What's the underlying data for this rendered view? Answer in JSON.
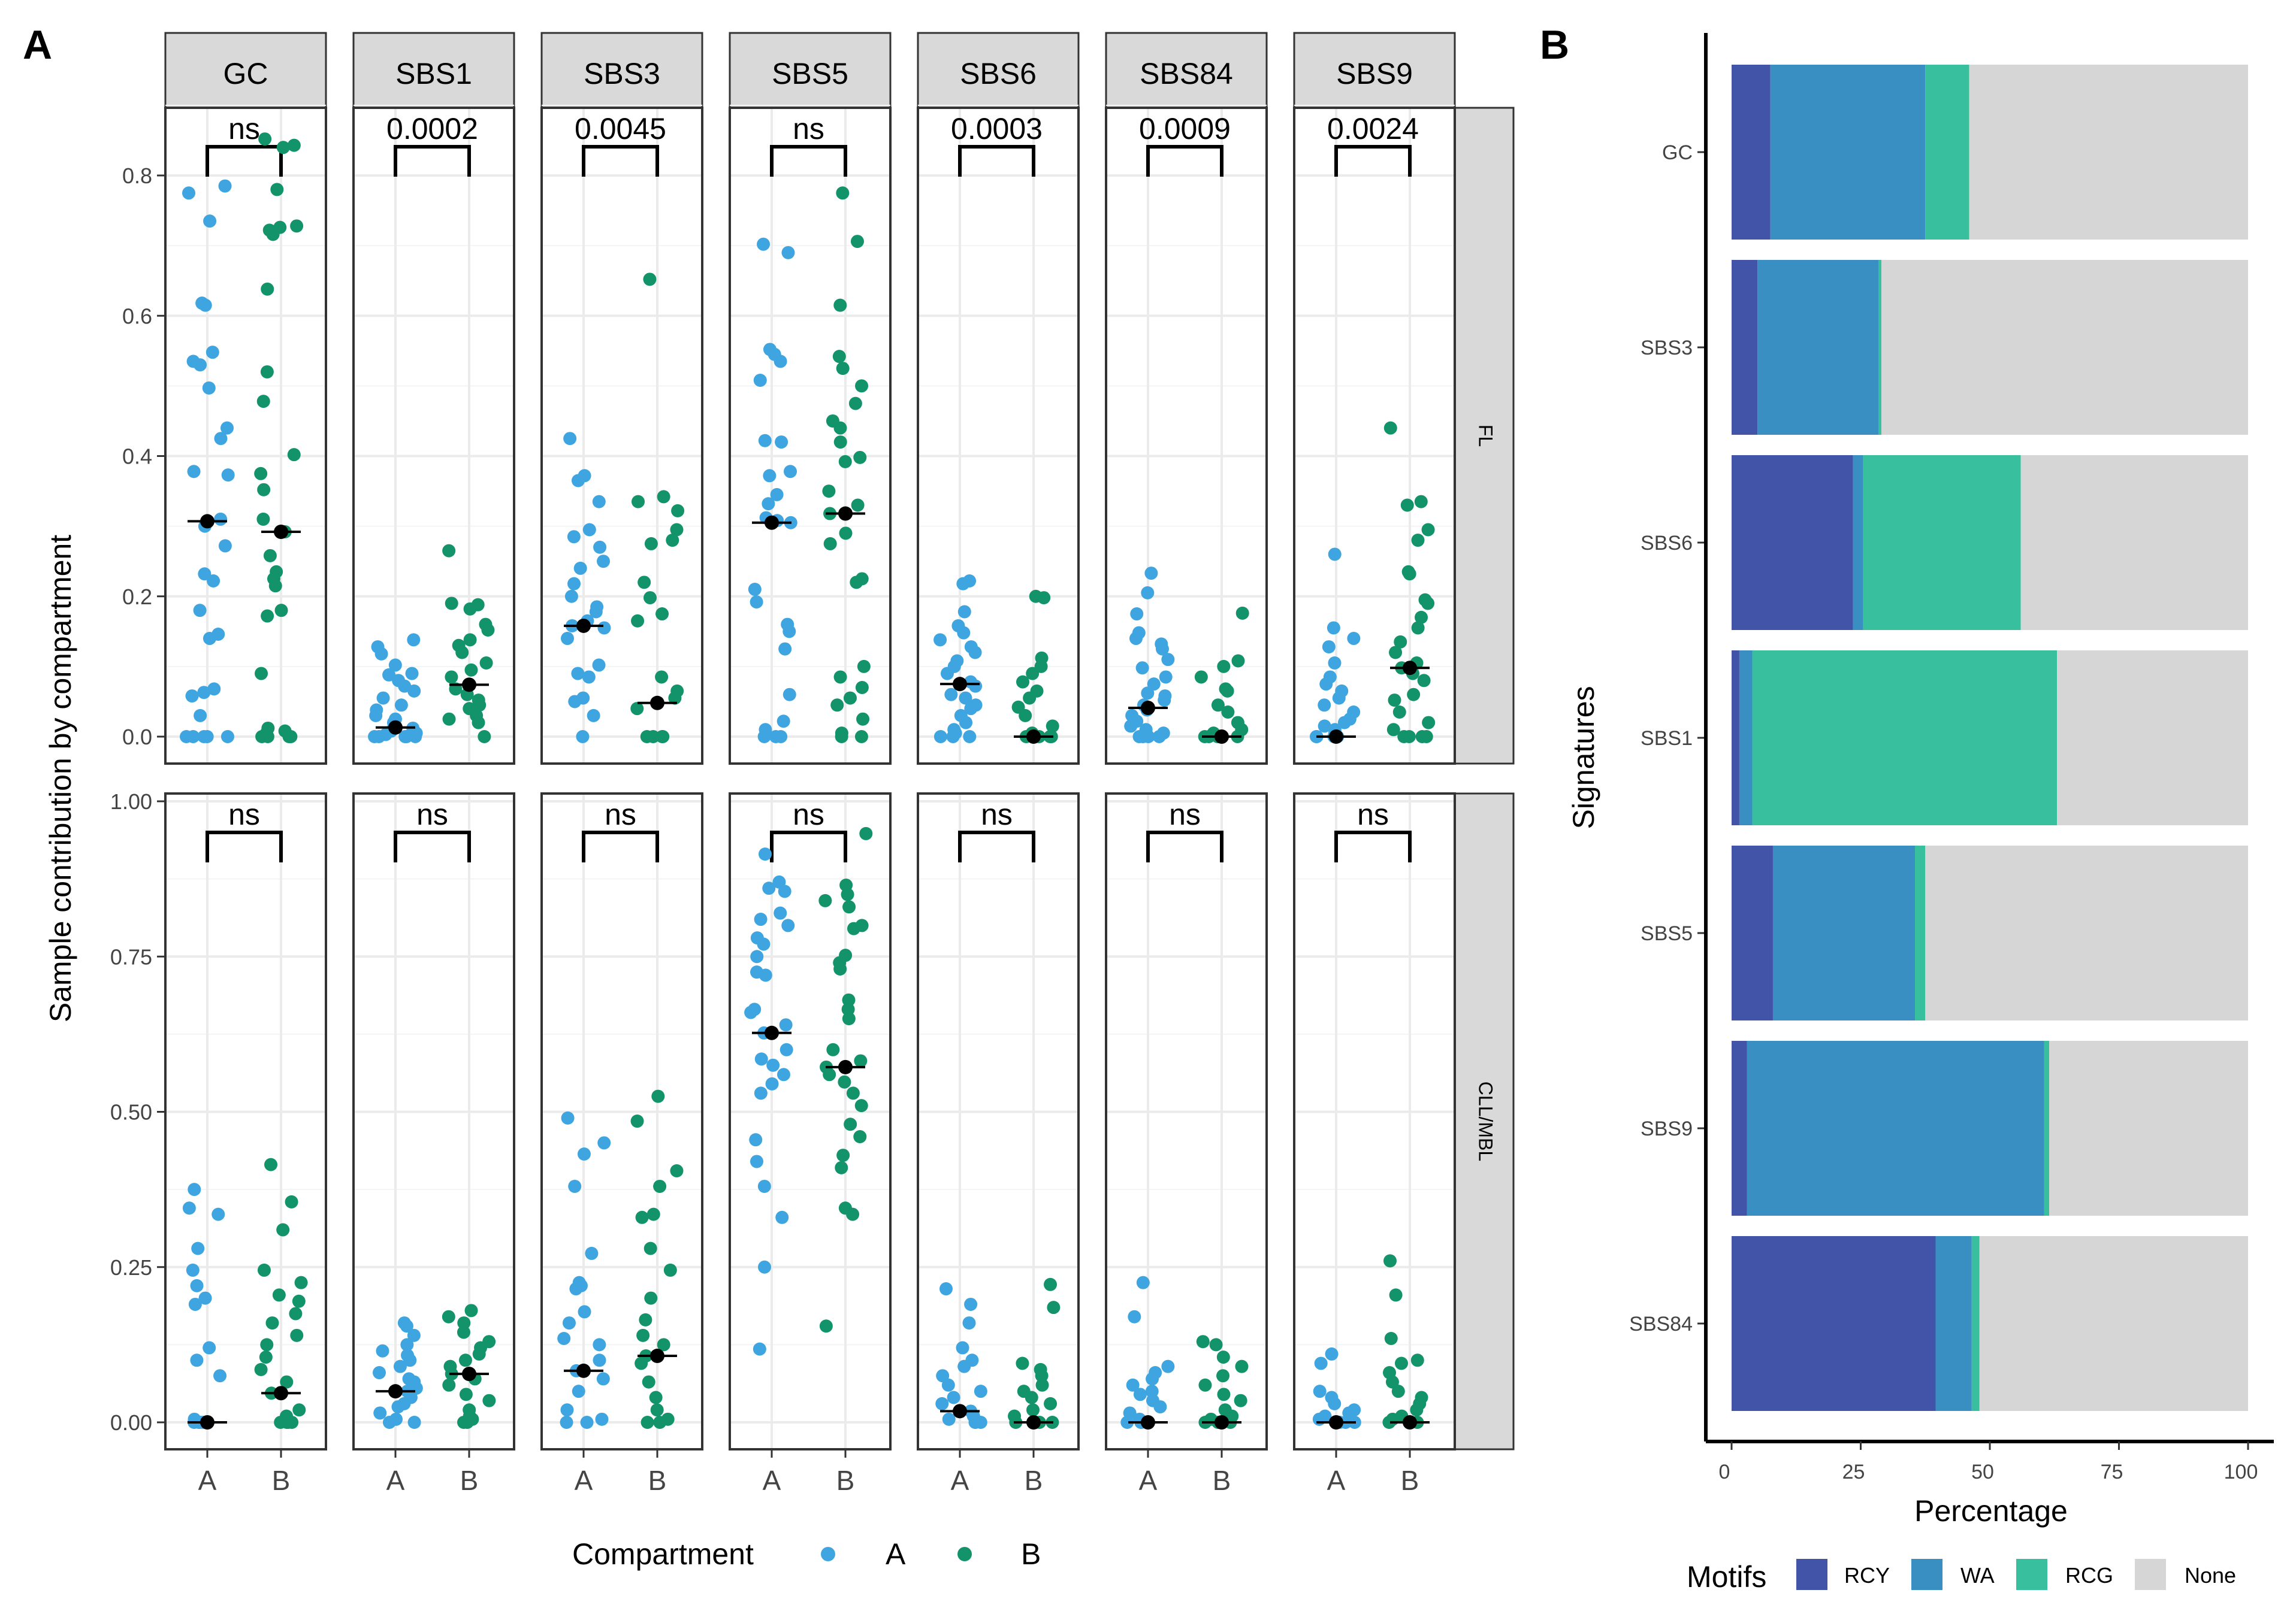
{
  "figure": {
    "panel_a_label": "A",
    "panel_b_label": "B"
  },
  "chart_data": [
    {
      "type": "scatter",
      "panel": "A",
      "title": "",
      "xlabel": "",
      "ylabel": "Sample contribution by compartment",
      "x_categories": [
        "A",
        "B"
      ],
      "facet_columns": [
        "GC",
        "SBS1",
        "SBS3",
        "SBS5",
        "SBS6",
        "SBS84",
        "SBS9"
      ],
      "facet_rows": [
        "FL",
        "CLL/MBL"
      ],
      "legend": {
        "title": "Compartment",
        "entries": [
          "A",
          "B"
        ],
        "colors": [
          "#3FA5E0",
          "#13936A"
        ]
      },
      "median_color": "#000000",
      "rows": [
        {
          "name": "FL",
          "ylim": [
            0,
            0.86
          ],
          "yticks": [
            0.0,
            0.2,
            0.4,
            0.6,
            0.8
          ],
          "ytick_labels": [
            "0.0",
            "0.2",
            "0.4",
            "0.6",
            "0.8"
          ],
          "panels": [
            {
              "facet": "GC",
              "p_label": "ns",
              "median_A": 0.307,
              "median_B": 0.292,
              "A": [
                0.785,
                0.775,
                0.735,
                0.618,
                0.615,
                0.548,
                0.535,
                0.53,
                0.497,
                0.44,
                0.425,
                0.378,
                0.373,
                0.31,
                0.3,
                0.272,
                0.232,
                0.222,
                0.18,
                0.146,
                0.14,
                0.068,
                0.063,
                0.058,
                0.03,
                0.0,
                0.0,
                0.0,
                0.0,
                0.0
              ],
              "B": [
                0.852,
                0.843,
                0.84,
                0.78,
                0.728,
                0.726,
                0.722,
                0.716,
                0.638,
                0.52,
                0.478,
                0.402,
                0.375,
                0.352,
                0.31,
                0.292,
                0.258,
                0.235,
                0.225,
                0.215,
                0.18,
                0.172,
                0.09,
                0.012,
                0.008,
                0.005,
                0.0,
                0.0,
                0.0,
                0.0
              ]
            },
            {
              "facet": "SBS1",
              "p_label": "0.0002",
              "median_A": 0.013,
              "median_B": 0.074,
              "A": [
                0.138,
                0.128,
                0.118,
                0.102,
                0.09,
                0.088,
                0.08,
                0.072,
                0.065,
                0.055,
                0.045,
                0.038,
                0.03,
                0.025,
                0.02,
                0.015,
                0.012,
                0.008,
                0.005,
                0.003,
                0.0,
                0.0,
                0.0,
                0.0,
                0.0
              ],
              "B": [
                0.265,
                0.19,
                0.188,
                0.182,
                0.16,
                0.152,
                0.138,
                0.13,
                0.12,
                0.105,
                0.095,
                0.085,
                0.074,
                0.068,
                0.06,
                0.052,
                0.045,
                0.04,
                0.03,
                0.025,
                0.02,
                0.0
              ]
            },
            {
              "facet": "SBS3",
              "p_label": "0.0045",
              "median_A": 0.158,
              "median_B": 0.048,
              "A": [
                0.425,
                0.372,
                0.365,
                0.335,
                0.295,
                0.285,
                0.27,
                0.25,
                0.24,
                0.218,
                0.2,
                0.185,
                0.178,
                0.165,
                0.158,
                0.155,
                0.14,
                0.102,
                0.09,
                0.085,
                0.055,
                0.05,
                0.03,
                0.0
              ],
              "B": [
                0.652,
                0.342,
                0.335,
                0.322,
                0.295,
                0.28,
                0.275,
                0.22,
                0.198,
                0.175,
                0.165,
                0.085,
                0.065,
                0.055,
                0.048,
                0.04,
                0.0,
                0.0,
                0.0,
                0.0
              ]
            },
            {
              "facet": "SBS5",
              "p_label": "ns",
              "median_A": 0.305,
              "median_B": 0.318,
              "A": [
                0.702,
                0.69,
                0.552,
                0.545,
                0.535,
                0.508,
                0.422,
                0.42,
                0.378,
                0.372,
                0.345,
                0.332,
                0.312,
                0.308,
                0.305,
                0.21,
                0.192,
                0.16,
                0.15,
                0.125,
                0.06,
                0.022,
                0.01,
                0.0,
                0.0,
                0.0
              ],
              "B": [
                0.775,
                0.706,
                0.615,
                0.542,
                0.525,
                0.5,
                0.475,
                0.45,
                0.44,
                0.42,
                0.398,
                0.392,
                0.35,
                0.33,
                0.318,
                0.29,
                0.275,
                0.225,
                0.22,
                0.1,
                0.085,
                0.07,
                0.055,
                0.045,
                0.025,
                0.005,
                0.0,
                0.0
              ]
            },
            {
              "facet": "SBS6",
              "p_label": "0.0003",
              "median_A": 0.075,
              "median_B": 0.0,
              "A": [
                0.222,
                0.218,
                0.178,
                0.158,
                0.148,
                0.138,
                0.128,
                0.12,
                0.108,
                0.1,
                0.09,
                0.078,
                0.072,
                0.06,
                0.055,
                0.045,
                0.04,
                0.03,
                0.02,
                0.01,
                0.005,
                0.0,
                0.0,
                0.0
              ],
              "B": [
                0.2,
                0.198,
                0.112,
                0.1,
                0.09,
                0.078,
                0.065,
                0.055,
                0.042,
                0.03,
                0.015,
                0.005,
                0.0,
                0.0,
                0.0,
                0.0
              ]
            },
            {
              "facet": "SBS84",
              "p_label": "0.0009",
              "median_A": 0.041,
              "median_B": 0.0,
              "A": [
                0.233,
                0.205,
                0.175,
                0.148,
                0.14,
                0.132,
                0.125,
                0.11,
                0.098,
                0.085,
                0.075,
                0.062,
                0.058,
                0.052,
                0.045,
                0.038,
                0.03,
                0.022,
                0.015,
                0.01,
                0.005,
                0.0,
                0.0,
                0.0,
                0.0
              ],
              "B": [
                0.176,
                0.108,
                0.1,
                0.085,
                0.068,
                0.065,
                0.045,
                0.035,
                0.02,
                0.01,
                0.005,
                0.0,
                0.0,
                0.0,
                0.0
              ]
            },
            {
              "facet": "SBS9",
              "p_label": "0.0024",
              "median_A": 0.0,
              "median_B": 0.098,
              "A": [
                0.26,
                0.155,
                0.14,
                0.128,
                0.105,
                0.085,
                0.075,
                0.065,
                0.055,
                0.045,
                0.035,
                0.025,
                0.02,
                0.015,
                0.01,
                0.005,
                0.0,
                0.0,
                0.0,
                0.0
              ],
              "B": [
                0.44,
                0.335,
                0.33,
                0.295,
                0.28,
                0.235,
                0.232,
                0.195,
                0.19,
                0.17,
                0.155,
                0.135,
                0.12,
                0.105,
                0.098,
                0.09,
                0.08,
                0.06,
                0.052,
                0.035,
                0.02,
                0.01,
                0.0,
                0.0,
                0.0,
                0.0
              ]
            }
          ]
        },
        {
          "name": "CLL/MBL",
          "ylim": [
            0,
            1.0
          ],
          "yticks": [
            0.0,
            0.25,
            0.5,
            0.75,
            1.0
          ],
          "ytick_labels": [
            "0.00",
            "0.25",
            "0.50",
            "0.75",
            "1.00"
          ],
          "panels": [
            {
              "facet": "GC",
              "p_label": "ns",
              "median_A": 0.0,
              "median_B": 0.047,
              "A": [
                0.375,
                0.345,
                0.335,
                0.28,
                0.245,
                0.22,
                0.2,
                0.19,
                0.12,
                0.1,
                0.075,
                0.005,
                0.0,
                0.0,
                0.0,
                0.0
              ],
              "B": [
                0.415,
                0.355,
                0.31,
                0.245,
                0.225,
                0.205,
                0.195,
                0.175,
                0.16,
                0.14,
                0.125,
                0.105,
                0.085,
                0.065,
                0.047,
                0.02,
                0.01,
                0.0,
                0.0,
                0.0,
                0.0
              ]
            },
            {
              "facet": "SBS1",
              "p_label": "ns",
              "median_A": 0.05,
              "median_B": 0.078,
              "A": [
                0.16,
                0.155,
                0.14,
                0.125,
                0.115,
                0.108,
                0.1,
                0.09,
                0.08,
                0.07,
                0.065,
                0.055,
                0.05,
                0.04,
                0.03,
                0.025,
                0.015,
                0.005,
                0.0,
                0.0
              ],
              "B": [
                0.18,
                0.17,
                0.16,
                0.145,
                0.13,
                0.12,
                0.11,
                0.1,
                0.09,
                0.078,
                0.07,
                0.06,
                0.045,
                0.035,
                0.02,
                0.01,
                0.005,
                0.0,
                0.0
              ]
            },
            {
              "facet": "SBS3",
              "p_label": "ns",
              "median_A": 0.083,
              "median_B": 0.107,
              "A": [
                0.49,
                0.45,
                0.432,
                0.38,
                0.272,
                0.225,
                0.22,
                0.215,
                0.178,
                0.16,
                0.135,
                0.125,
                0.1,
                0.083,
                0.07,
                0.05,
                0.02,
                0.005,
                0.0,
                0.0
              ],
              "B": [
                0.525,
                0.485,
                0.405,
                0.38,
                0.335,
                0.33,
                0.28,
                0.245,
                0.2,
                0.165,
                0.14,
                0.125,
                0.107,
                0.095,
                0.065,
                0.04,
                0.02,
                0.005,
                0.0,
                0.0
              ]
            },
            {
              "facet": "SBS5",
              "p_label": "ns",
              "median_A": 0.627,
              "median_B": 0.572,
              "A": [
                0.915,
                0.87,
                0.86,
                0.855,
                0.82,
                0.81,
                0.8,
                0.78,
                0.77,
                0.75,
                0.725,
                0.72,
                0.665,
                0.66,
                0.64,
                0.627,
                0.6,
                0.585,
                0.575,
                0.56,
                0.545,
                0.53,
                0.455,
                0.42,
                0.38,
                0.33,
                0.25,
                0.118
              ],
              "B": [
                0.948,
                0.865,
                0.85,
                0.84,
                0.83,
                0.8,
                0.795,
                0.752,
                0.74,
                0.73,
                0.68,
                0.665,
                0.65,
                0.6,
                0.582,
                0.572,
                0.56,
                0.548,
                0.53,
                0.51,
                0.48,
                0.46,
                0.43,
                0.41,
                0.345,
                0.335,
                0.155
              ]
            },
            {
              "facet": "SBS6",
              "p_label": "ns",
              "median_A": 0.018,
              "median_B": 0.0,
              "A": [
                0.215,
                0.19,
                0.16,
                0.12,
                0.1,
                0.09,
                0.075,
                0.06,
                0.05,
                0.04,
                0.03,
                0.018,
                0.01,
                0.005,
                0.0,
                0.0,
                0.0
              ],
              "B": [
                0.222,
                0.185,
                0.095,
                0.085,
                0.075,
                0.06,
                0.05,
                0.04,
                0.03,
                0.02,
                0.01,
                0.0,
                0.0,
                0.0,
                0.0
              ]
            },
            {
              "facet": "SBS84",
              "p_label": "ns",
              "median_A": 0.0,
              "median_B": 0.0,
              "A": [
                0.225,
                0.17,
                0.09,
                0.08,
                0.07,
                0.06,
                0.05,
                0.045,
                0.035,
                0.025,
                0.015,
                0.005,
                0.0,
                0.0,
                0.0
              ],
              "B": [
                0.13,
                0.125,
                0.105,
                0.09,
                0.075,
                0.06,
                0.045,
                0.035,
                0.02,
                0.01,
                0.005,
                0.0,
                0.0,
                0.0
              ]
            },
            {
              "facet": "SBS9",
              "p_label": "ns",
              "median_A": 0.0,
              "median_B": 0.0,
              "A": [
                0.11,
                0.095,
                0.05,
                0.04,
                0.03,
                0.02,
                0.015,
                0.01,
                0.005,
                0.0,
                0.0,
                0.0
              ],
              "B": [
                0.26,
                0.205,
                0.135,
                0.1,
                0.095,
                0.08,
                0.065,
                0.05,
                0.04,
                0.03,
                0.02,
                0.01,
                0.005,
                0.0,
                0.0
              ]
            }
          ]
        }
      ]
    },
    {
      "type": "bar",
      "orientation": "horizontal",
      "stacked": true,
      "panel": "B",
      "title": "",
      "xlabel": "Percentage",
      "ylabel": "Signatures",
      "xlim": [
        0,
        100
      ],
      "xticks": [
        0,
        25,
        50,
        75,
        100
      ],
      "categories": [
        "GC",
        "SBS3",
        "SBS6",
        "SBS1",
        "SBS5",
        "SBS9",
        "SBS84"
      ],
      "legend": {
        "title": "Motifs",
        "placement": "bottom"
      },
      "series": [
        {
          "name": "RCY",
          "color": "#4254A8",
          "values": [
            7.5,
            5.0,
            23.5,
            1.5,
            8.0,
            3.0,
            39.5
          ]
        },
        {
          "name": "WA",
          "color": "#3A8FC2",
          "values": [
            30.0,
            23.5,
            2.0,
            2.5,
            27.5,
            57.5,
            7.0
          ]
        },
        {
          "name": "RCG",
          "color": "#38C09E",
          "values": [
            8.5,
            0.5,
            30.5,
            59.0,
            2.0,
            1.0,
            1.5
          ]
        },
        {
          "name": "None",
          "color": "#D6D6D6",
          "values": [
            54.0,
            71.0,
            44.0,
            37.0,
            62.5,
            38.5,
            52.0
          ]
        }
      ]
    }
  ]
}
